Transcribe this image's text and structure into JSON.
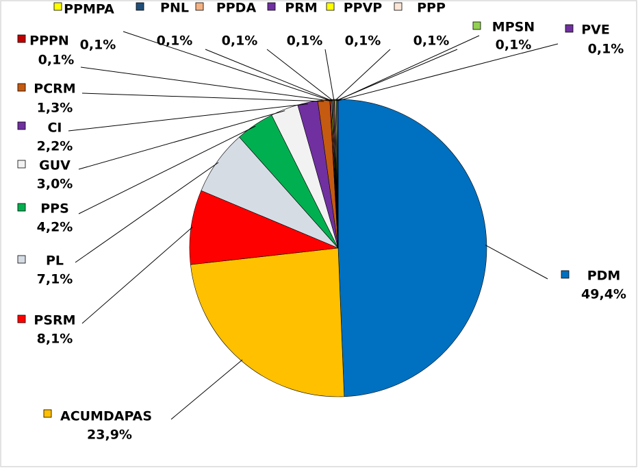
{
  "chart_data": {
    "type": "pie",
    "categories": [
      "PDM",
      "ACUMDAPAS",
      "PSRM",
      "PL",
      "PPS",
      "GUV",
      "CI",
      "PCRM",
      "PPPN",
      "PPMPA",
      "PNL",
      "PPDA",
      "PRM",
      "PPVP",
      "PPP",
      "MPSN",
      "PVE"
    ],
    "values": [
      49.4,
      23.9,
      8.1,
      7.1,
      4.2,
      3.0,
      2.2,
      1.3,
      0.1,
      0.1,
      0.1,
      0.1,
      0.1,
      0.1,
      0.1,
      0.1,
      0.1
    ],
    "value_labels": [
      "49,4%",
      "23,9%",
      "8,1%",
      "7,1%",
      "4,2%",
      "3,0%",
      "2,2%",
      "1,3%",
      "0,1%",
      "0,1%",
      "0,1%",
      "0,1%",
      "0,1%",
      "0,1%",
      "0,1%",
      "0,1%",
      "0,1%"
    ],
    "colors": [
      "#0070C0",
      "#FFC000",
      "#FF0000",
      "#D6DCE4",
      "#00B050",
      "#F2F2F2",
      "#7030A0",
      "#C55A11",
      "#C00000",
      "#FFFF00",
      "#1F4E79",
      "#F4B183",
      "#7030A0",
      "#FFFF00",
      "#FBE5D6",
      "#92D050",
      "#7030A0"
    ]
  }
}
